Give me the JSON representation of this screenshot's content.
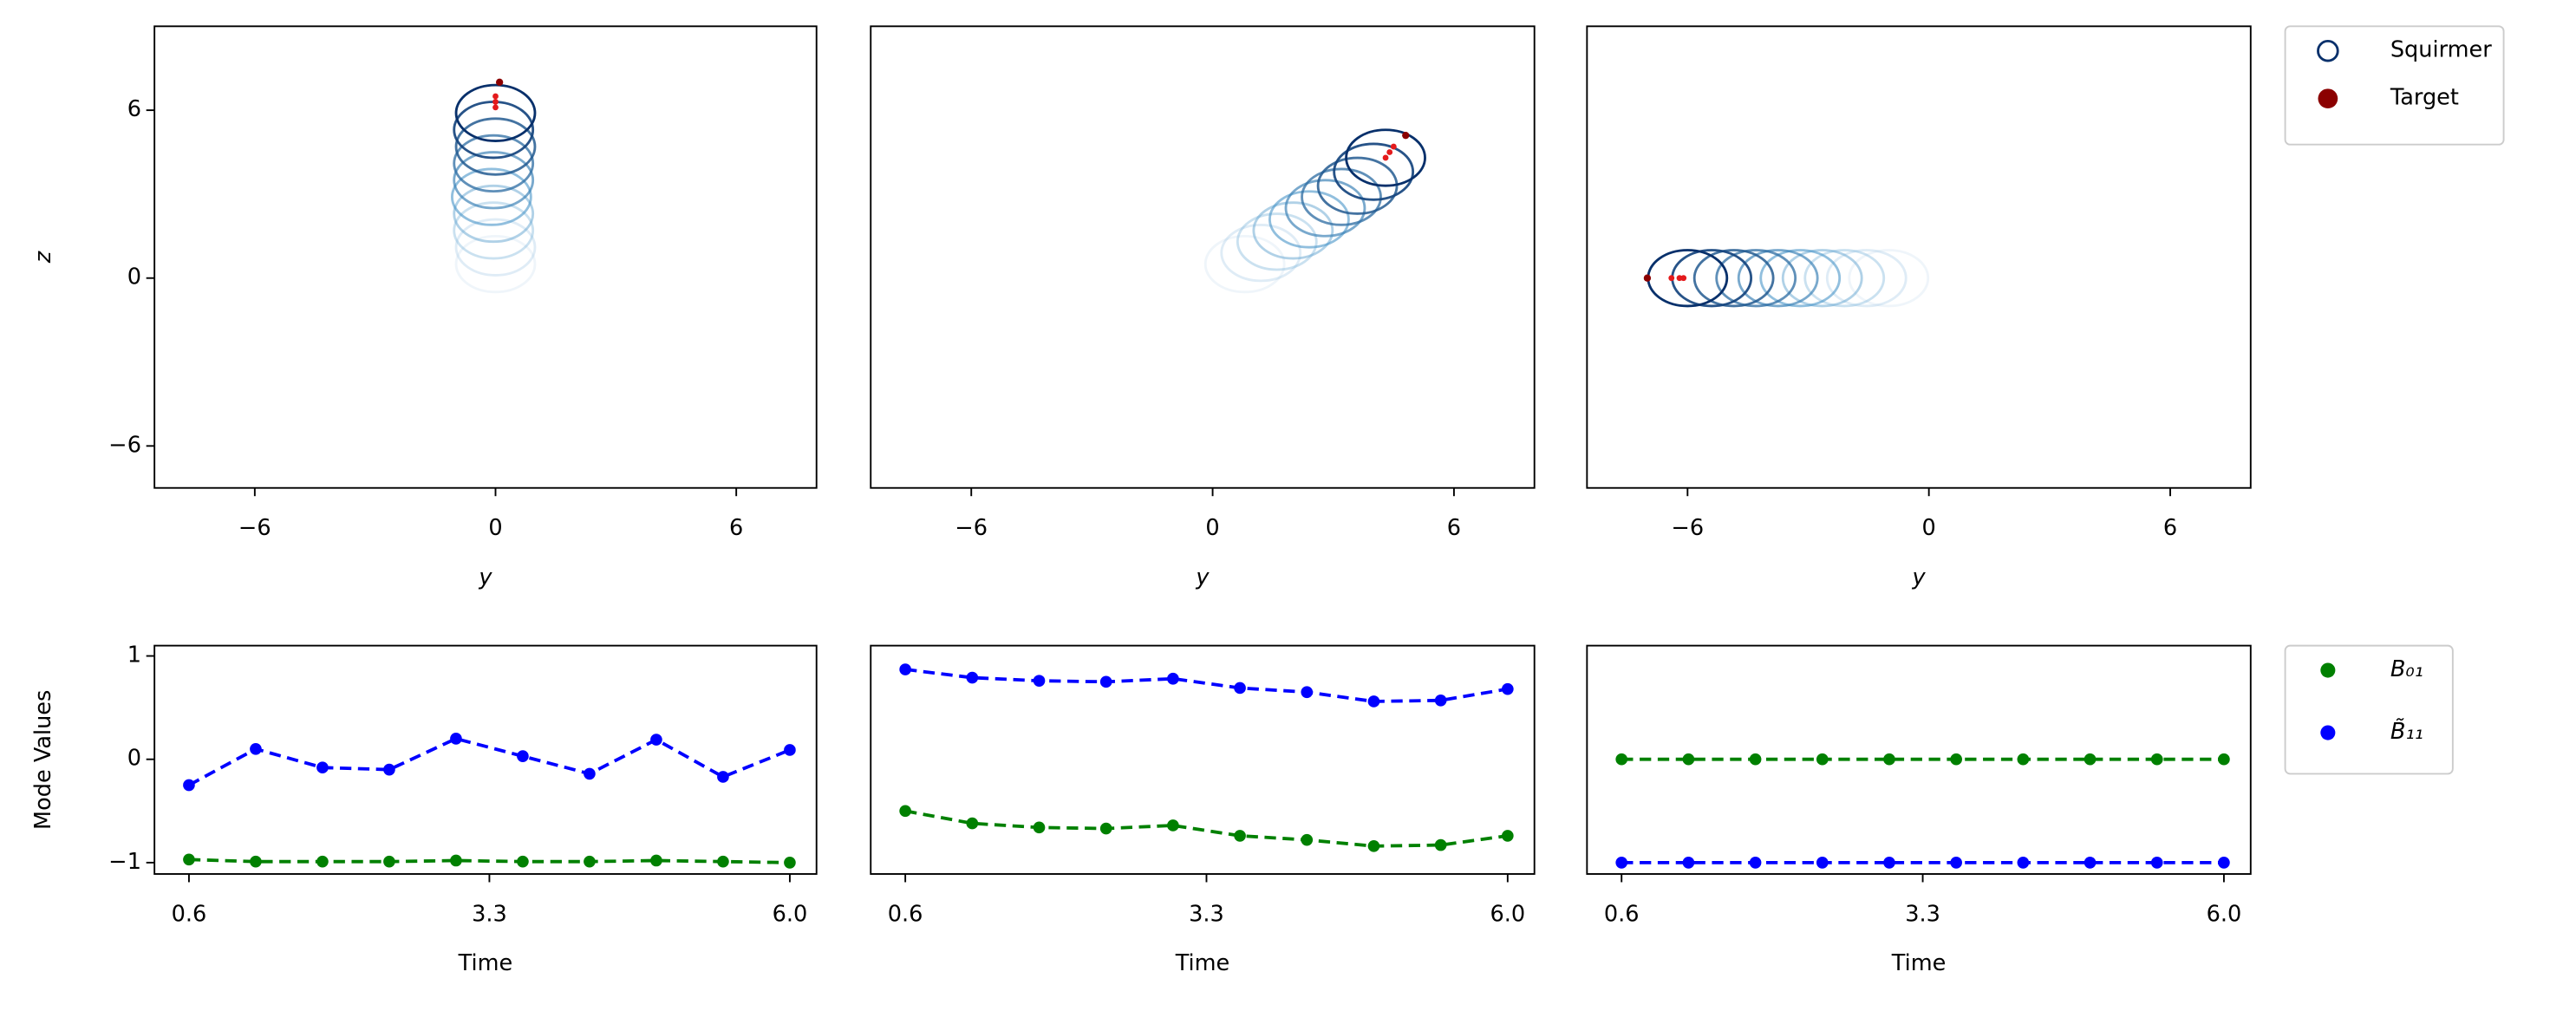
{
  "chart_data": [
    {
      "type": "scatter",
      "xlabel": "y",
      "ylabel": "z",
      "xlim": [
        -8.5,
        8
      ],
      "ylim": [
        -7.5,
        9
      ],
      "xticks": [
        {
          "value": -6,
          "label": "−6"
        },
        0,
        6
      ],
      "yticks": [
        {
          "value": -6,
          "label": "−6"
        },
        0,
        6
      ],
      "series": [
        {
          "color": "#08306b",
          "colormap": "Blues",
          "marker": "open-circle",
          "x": [
            0,
            0,
            -0.05,
            -0.05,
            -0.1,
            -0.05,
            -0.05,
            0,
            -0.05,
            0
          ],
          "y": [
            0.5,
            1.1,
            1.7,
            2.3,
            2.9,
            3.5,
            4.1,
            4.7,
            5.3,
            5.9
          ]
        },
        {
          "color": "#8b0000",
          "marker": "dot",
          "x": [
            0.1,
            0,
            0,
            0
          ],
          "y": [
            7.0,
            6.5,
            6.3,
            6.1
          ]
        }
      ]
    },
    {
      "type": "scatter",
      "xlabel": "y",
      "xlim": [
        -8.5,
        8
      ],
      "ylim": [
        -7.5,
        9
      ],
      "xticks": [
        {
          "value": -6,
          "label": "−6"
        },
        0,
        6
      ],
      "series": [
        {
          "color": "#08306b",
          "colormap": "Blues",
          "marker": "open-circle",
          "x": [
            0.8,
            1.2,
            1.6,
            2.0,
            2.4,
            2.8,
            3.2,
            3.6,
            4.0,
            4.3
          ],
          "y": [
            0.5,
            0.9,
            1.3,
            1.7,
            2.1,
            2.5,
            2.9,
            3.3,
            3.8,
            4.3
          ]
        },
        {
          "color": "#8b0000",
          "marker": "dot",
          "x": [
            4.8,
            4.5,
            4.4,
            4.3
          ],
          "y": [
            5.1,
            4.7,
            4.5,
            4.3
          ]
        }
      ]
    },
    {
      "type": "scatter",
      "xlabel": "y",
      "legend": "outside upper left",
      "xlim": [
        -8.5,
        8
      ],
      "ylim": [
        -7.5,
        9
      ],
      "xticks": [
        {
          "value": -6,
          "label": "−6"
        },
        0,
        6
      ],
      "series": [
        {
          "name": "Squirmer",
          "color": "#08306b",
          "colormap": "Blues",
          "marker": "open-circle",
          "x": [
            -1.0,
            -1.55,
            -2.1,
            -2.65,
            -3.2,
            -3.75,
            -4.3,
            -4.85,
            -5.4,
            -6.0
          ],
          "y": [
            0,
            0,
            0,
            0,
            0,
            0,
            0,
            0,
            0,
            0
          ]
        },
        {
          "name": "Target",
          "color": "#8b0000",
          "marker": "dot",
          "x": [
            -7.0,
            -6.4,
            -6.2,
            -6.1
          ],
          "y": [
            0,
            0,
            0,
            0
          ]
        }
      ]
    },
    {
      "type": "line",
      "xlabel": "Time",
      "ylabel": "Mode Values",
      "xlim": [
        0.29,
        6.24
      ],
      "ylim": [
        -1.11,
        1.1
      ],
      "xticks": [
        0.6,
        3.3,
        {
          "value": 6,
          "label": "6.0"
        }
      ],
      "yticks": [
        {
          "value": -1,
          "label": "−1"
        },
        0,
        1
      ],
      "x": [
        0.6,
        1.2,
        1.8,
        2.4,
        3.0,
        3.6,
        4.2,
        4.8,
        5.4,
        6.0
      ],
      "series": [
        {
          "color": "#008000",
          "values": [
            -0.97,
            -0.99,
            -0.99,
            -0.99,
            -0.98,
            -0.99,
            -0.99,
            -0.98,
            -0.99,
            -1.0
          ]
        },
        {
          "color": "#0000ff",
          "values": [
            -0.25,
            0.1,
            -0.08,
            -0.1,
            0.2,
            0.03,
            -0.14,
            0.19,
            -0.17,
            0.09
          ]
        }
      ]
    },
    {
      "type": "line",
      "xlabel": "Time",
      "xlim": [
        0.29,
        6.24
      ],
      "ylim": [
        -1.11,
        1.1
      ],
      "xticks": [
        0.6,
        3.3,
        {
          "value": 6,
          "label": "6.0"
        }
      ],
      "x": [
        0.6,
        1.2,
        1.8,
        2.4,
        3.0,
        3.6,
        4.2,
        4.8,
        5.4,
        6.0
      ],
      "series": [
        {
          "color": "#008000",
          "values": [
            -0.5,
            -0.62,
            -0.66,
            -0.67,
            -0.64,
            -0.74,
            -0.78,
            -0.84,
            -0.83,
            -0.74
          ]
        },
        {
          "color": "#0000ff",
          "values": [
            0.87,
            0.79,
            0.76,
            0.75,
            0.78,
            0.69,
            0.65,
            0.56,
            0.57,
            0.68
          ]
        }
      ]
    },
    {
      "type": "line",
      "xlabel": "Time",
      "legend": "outside upper left",
      "xlim": [
        0.29,
        6.24
      ],
      "ylim": [
        -1.11,
        1.1
      ],
      "xticks": [
        0.6,
        3.3,
        {
          "value": 6,
          "label": "6.0"
        }
      ],
      "x": [
        0.6,
        1.2,
        1.8,
        2.4,
        3.0,
        3.6,
        4.2,
        4.8,
        5.4,
        6.0
      ],
      "series": [
        {
          "name": "B₀₁",
          "color": "#008000",
          "values": [
            0,
            0,
            0,
            0,
            0,
            0,
            0,
            0,
            0,
            0
          ]
        },
        {
          "name": "B̃₁₁",
          "color": "#0000ff",
          "values": [
            -1,
            -1,
            -1,
            -1,
            -1,
            -1,
            -1,
            -1,
            -1,
            -1
          ]
        }
      ]
    }
  ]
}
